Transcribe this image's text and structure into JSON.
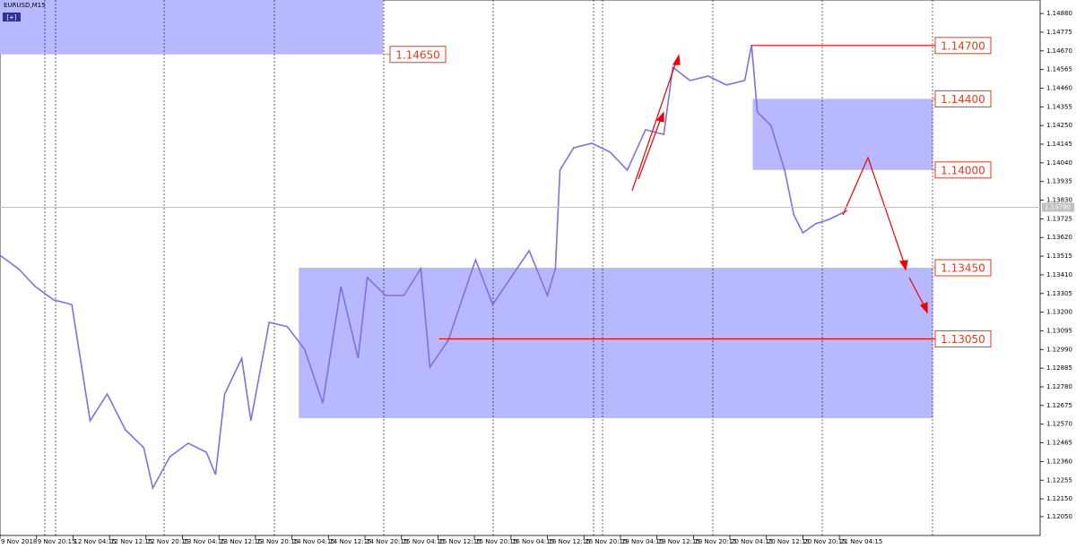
{
  "chart_data": {
    "type": "line",
    "title": "EURUSD,M15",
    "button": "[+]",
    "color": "#8070e0",
    "x": [
      0,
      16,
      31,
      47,
      63,
      79,
      94,
      110,
      126,
      134,
      149,
      165,
      181,
      189,
      197,
      212,
      220,
      236,
      252,
      267,
      283,
      299,
      314,
      322,
      338,
      354,
      369,
      377,
      393,
      409,
      417,
      432,
      448,
      464,
      480,
      487,
      491,
      503,
      519,
      535,
      550,
      566,
      582,
      590,
      605,
      621,
      637,
      653,
      659,
      664,
      676,
      688,
      696,
      704,
      715,
      727,
      743
    ],
    "values": [
      1.1352,
      1.13445,
      1.13344,
      1.13269,
      1.13243,
      1.12589,
      1.1274,
      1.12538,
      1.12438,
      1.12211,
      1.12387,
      1.12463,
      1.12412,
      1.12286,
      1.1274,
      1.12941,
      1.12589,
      1.13143,
      1.13118,
      1.12992,
      1.12689,
      1.13344,
      1.12941,
      1.13395,
      1.13294,
      1.13294,
      1.13445,
      1.12891,
      1.13042,
      1.13344,
      1.13495,
      1.13243,
      1.13395,
      1.13546,
      1.13294,
      1.13445,
      1.13999,
      1.14125,
      1.1415,
      1.141,
      1.13999,
      1.14226,
      1.142,
      1.14578,
      1.14503,
      1.14528,
      1.14478,
      1.14503,
      1.14704,
      1.14326,
      1.14251,
      1.13999,
      1.13747,
      1.13646,
      1.13697,
      1.13722,
      1.13772
    ],
    "xlim": [
      0,
      912
    ],
    "ylim": [
      1.11944,
      1.14956
    ],
    "categories": [
      "9 Nov 2018",
      "9 Nov 20:15",
      "12 Nov 04:15",
      "12 Nov 12:15",
      "12 Nov 20:15",
      "13 Nov 04:15",
      "13 Nov 12:15",
      "13 Nov 20:15",
      "14 Nov 04:15",
      "14 Nov 12:15",
      "14 Nov 20:15",
      "15 Nov 04:15",
      "15 Nov 12:15",
      "15 Nov 20:15",
      "16 Nov 04:15",
      "16 Nov 12:15",
      "16 Nov 20:15",
      "19 Nov 04:15",
      "19 Nov 12:15",
      "19 Nov 20:15",
      "20 Nov 04:15",
      "20 Nov 12:15",
      "20 Nov 20:15",
      "21 Nov 04:15"
    ],
    "yticks": [
      {
        "value": 1.1488,
        "label": "1.14880"
      },
      {
        "value": 1.14775,
        "label": "1.14775"
      },
      {
        "value": 1.1467,
        "label": "1.14670"
      },
      {
        "value": 1.14565,
        "label": "1.14565"
      },
      {
        "value": 1.1446,
        "label": "1.14460"
      },
      {
        "value": 1.14355,
        "label": "1.14355"
      },
      {
        "value": 1.1425,
        "label": "1.14250"
      },
      {
        "value": 1.14145,
        "label": "1.14145"
      },
      {
        "value": 1.1404,
        "label": "1.14040"
      },
      {
        "value": 1.13935,
        "label": "1.13935"
      },
      {
        "value": 1.1383,
        "label": "1.13830"
      },
      {
        "value": 1.13725,
        "label": "1.13725"
      },
      {
        "value": 1.1362,
        "label": "1.13620"
      },
      {
        "value": 1.13515,
        "label": "1.13515"
      },
      {
        "value": 1.1341,
        "label": "1.13410"
      },
      {
        "value": 1.13305,
        "label": "1.13305"
      },
      {
        "value": 1.132,
        "label": "1.13200"
      },
      {
        "value": 1.13095,
        "label": "1.13095"
      },
      {
        "value": 1.1299,
        "label": "1.12990"
      },
      {
        "value": 1.12885,
        "label": "1.12885"
      },
      {
        "value": 1.1278,
        "label": "1.12780"
      },
      {
        "value": 1.12675,
        "label": "1.12675"
      },
      {
        "value": 1.1257,
        "label": "1.12570"
      },
      {
        "value": 1.12465,
        "label": "1.12465"
      },
      {
        "value": 1.1236,
        "label": "1.12360"
      },
      {
        "value": 1.12255,
        "label": "1.12255"
      },
      {
        "value": 1.1215,
        "label": "1.12150"
      },
      {
        "value": 1.1205,
        "label": "1.12050"
      }
    ],
    "current_price": {
      "value": 1.1379,
      "label": "1.13790"
    },
    "zones": [
      {
        "x0": 0,
        "x1": 336,
        "low": 1.1465,
        "high": 1.14956
      },
      {
        "x0": 660,
        "x1": 818,
        "low": 1.14,
        "high": 1.144
      },
      {
        "x0": 262,
        "x1": 818,
        "low": 1.12604,
        "high": 1.1345
      }
    ],
    "levels": [
      {
        "value": 1.1465,
        "label": "1.14650",
        "x0": 336,
        "box_x": 342,
        "line": false
      },
      {
        "value": 1.147,
        "label": "1.14700",
        "x0": 659,
        "box_x": 820,
        "line": true
      },
      {
        "value": 1.144,
        "label": "1.14400",
        "x0": 818,
        "box_x": 820,
        "line": false
      },
      {
        "value": 1.14,
        "label": "1.14000",
        "x0": 818,
        "box_x": 820,
        "line": false
      },
      {
        "value": 1.1345,
        "label": "1.13450",
        "x0": 818,
        "box_x": 820,
        "line": false
      },
      {
        "value": 1.1305,
        "label": "1.13050",
        "x0": 385,
        "box_x": 820,
        "line": true
      }
    ]
  }
}
